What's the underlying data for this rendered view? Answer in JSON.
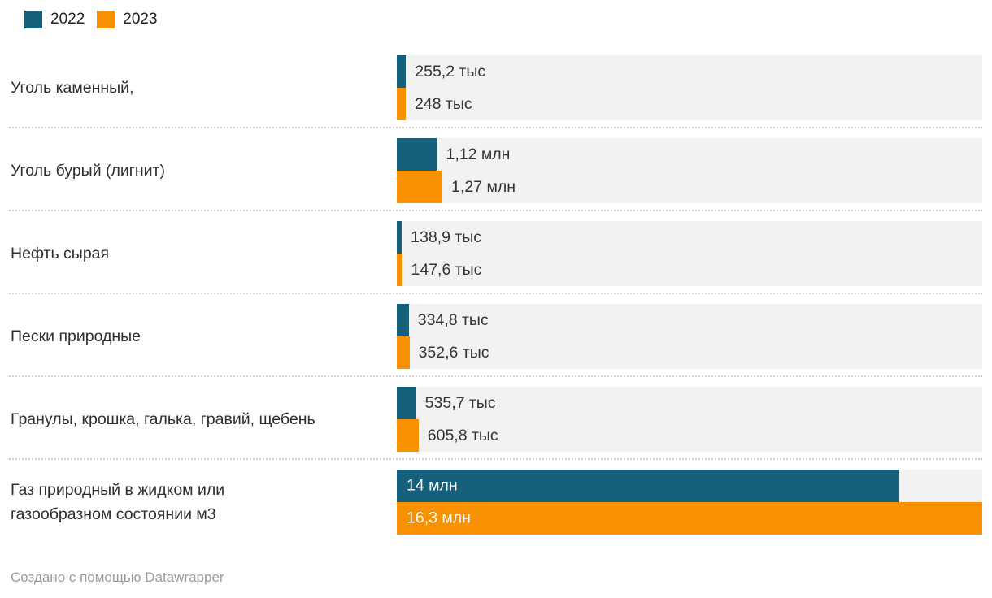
{
  "legend": {
    "items": [
      {
        "label": "2022",
        "color": "#15607a"
      },
      {
        "label": "2023",
        "color": "#f89100"
      }
    ]
  },
  "chart_data": {
    "type": "bar",
    "orientation": "horizontal",
    "grouped": true,
    "axis_hidden": true,
    "xmax": 16300000,
    "track_color": "#f2f2f2",
    "categories": [
      "Уголь каменный,",
      "Уголь бурый (лигнит)",
      "Нефть сырая",
      "Пески природные",
      "Гранулы, крошка, галька, гравий, щебень",
      "Газ природный в жидком или газообразном состоянии м3"
    ],
    "categories_display": [
      "Уголь каменный,",
      "Уголь бурый (лигнит)",
      "Нефть сырая",
      "Пески природные",
      "Гранулы, крошка, галька, гравий, щебень",
      "Газ природный в жидком или\nгазообразном состоянии м3"
    ],
    "series": [
      {
        "name": "2022",
        "color": "#15607a",
        "values": [
          255200,
          1120000,
          138900,
          334800,
          535700,
          14000000
        ],
        "value_labels": [
          "255,2 тыс",
          "1,12 млн",
          "138,9 тыс",
          "334,8 тыс",
          "535,7 тыс",
          "14 млн"
        ]
      },
      {
        "name": "2023",
        "color": "#f89100",
        "values": [
          248000,
          1270000,
          147600,
          352600,
          605800,
          16300000
        ],
        "value_labels": [
          "248 тыс",
          "1,27 млн",
          "147,6 тыс",
          "352,6 тыс",
          "605,8 тыс",
          "16,3 млн"
        ]
      }
    ],
    "value_labels_inside_category_index": 5
  },
  "footer": {
    "text": "Создано с помощью Datawrapper"
  }
}
